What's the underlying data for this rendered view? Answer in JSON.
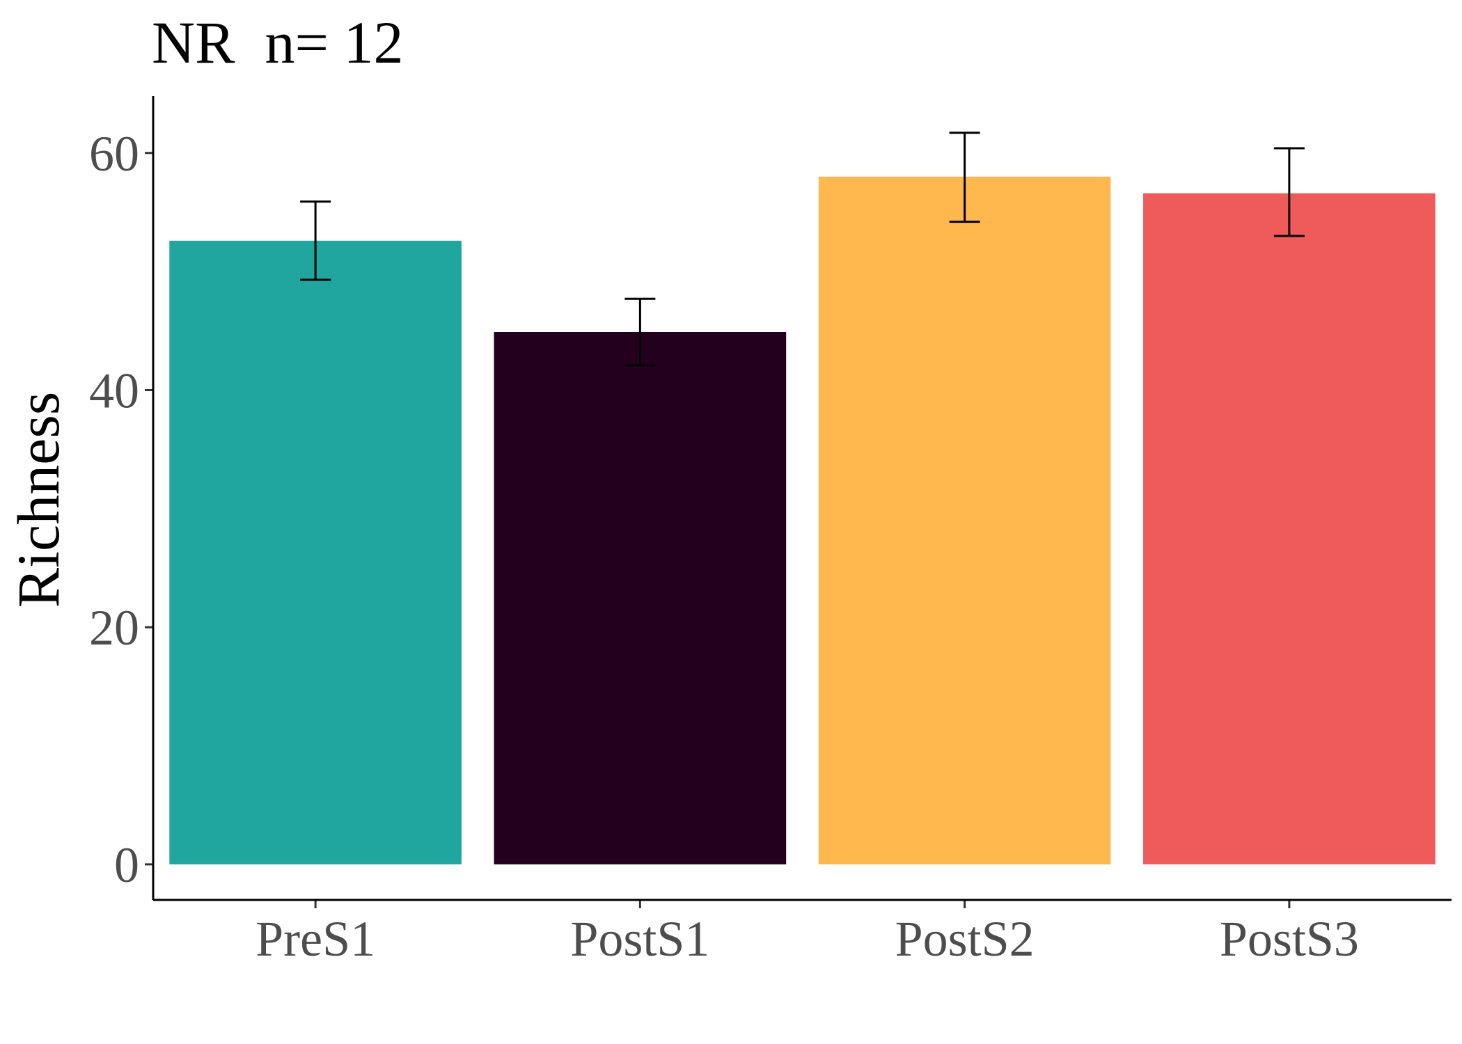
{
  "chart_data": {
    "type": "bar",
    "title": "NR  n= 12",
    "xlabel": "",
    "ylabel": "Richness",
    "categories": [
      "PreS1",
      "PostS1",
      "PostS2",
      "PostS3"
    ],
    "values": [
      52.6,
      44.9,
      58.0,
      56.6
    ],
    "error_low": [
      49.3,
      42.1,
      54.2,
      53.0
    ],
    "error_high": [
      55.9,
      47.7,
      61.7,
      60.4
    ],
    "colors": [
      "#21A59F",
      "#23001E",
      "#FFB84D",
      "#EF5B5B"
    ],
    "ylim": [
      -3,
      64.8
    ],
    "yticks": [
      0,
      20,
      40,
      60
    ],
    "ytick_labels": [
      "0",
      "20",
      "40",
      "60"
    ],
    "grid": false,
    "legend": "none"
  }
}
